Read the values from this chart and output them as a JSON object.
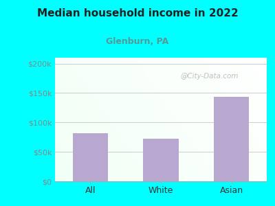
{
  "title": "Median household income in 2022",
  "subtitle": "Glenburn, PA",
  "categories": [
    "All",
    "White",
    "Asian"
  ],
  "values": [
    82000,
    72000,
    143000
  ],
  "bar_color": "#b8a8d0",
  "title_color": "#222222",
  "subtitle_color": "#559999",
  "bg_color": "#00ffff",
  "yticks": [
    0,
    50000,
    100000,
    150000,
    200000
  ],
  "ytick_labels": [
    "$0",
    "$50k",
    "$100k",
    "$150k",
    "$200k"
  ],
  "ylim": [
    0,
    210000
  ],
  "watermark": "@City-Data.com",
  "grid_color": "#cccccc",
  "ytick_color": "#888888",
  "xtick_color": "#333333"
}
